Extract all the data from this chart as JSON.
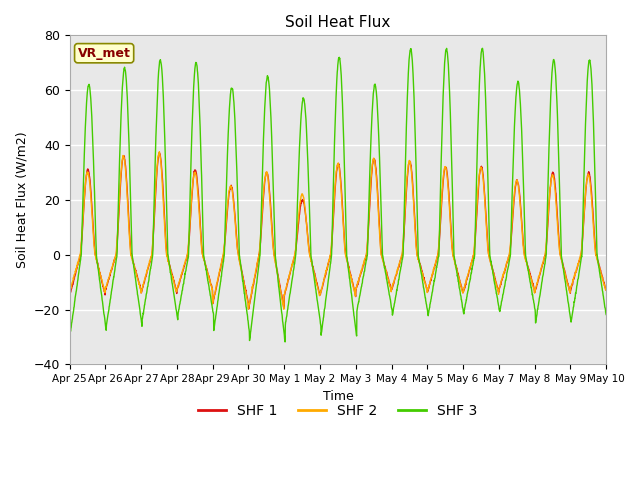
{
  "title": "Soil Heat Flux",
  "ylabel": "Soil Heat Flux (W/m2)",
  "xlabel": "Time",
  "ylim": [
    -40,
    80
  ],
  "bg_color": "#e8e8e8",
  "fig_color": "#ffffff",
  "grid_color": "#ffffff",
  "series_colors": [
    "#dd1111",
    "#ffaa00",
    "#44cc00"
  ],
  "series_labels": [
    "SHF 1",
    "SHF 2",
    "SHF 3"
  ],
  "annotation_text": "VR_met",
  "annotation_color": "#880000",
  "annotation_bg": "#ffffcc",
  "annotation_border": "#888800",
  "tick_labels": [
    "Apr 25",
    "Apr 26",
    "Apr 27",
    "Apr 28",
    "Apr 29",
    "Apr 30",
    "May 1",
    "May 2",
    "May 3",
    "May 4",
    "May 5",
    "May 6",
    "May 7",
    "May 8",
    "May 9",
    "May 10"
  ],
  "tick_positions": [
    0,
    1,
    2,
    3,
    4,
    5,
    6,
    7,
    8,
    9,
    10,
    11,
    12,
    13,
    14,
    15
  ],
  "amp1": [
    31,
    36,
    37,
    31,
    25,
    30,
    20,
    33,
    35,
    34,
    32,
    32,
    27,
    30,
    30
  ],
  "night1": [
    15,
    13,
    14,
    13,
    18,
    20,
    15,
    15,
    13,
    13,
    14,
    14,
    13,
    14,
    13
  ],
  "amp2": [
    30,
    36,
    37,
    30,
    25,
    30,
    22,
    33,
    35,
    34,
    32,
    32,
    27,
    29,
    29
  ],
  "night2": [
    14,
    13,
    14,
    13,
    18,
    20,
    15,
    15,
    13,
    13,
    14,
    14,
    13,
    14,
    13
  ],
  "amp3": [
    62,
    68,
    71,
    70,
    61,
    65,
    57,
    72,
    62,
    75,
    75,
    75,
    63,
    71,
    71
  ],
  "night3": [
    28,
    26,
    24,
    22,
    28,
    32,
    26,
    30,
    21,
    22,
    22,
    21,
    21,
    25,
    24
  ]
}
